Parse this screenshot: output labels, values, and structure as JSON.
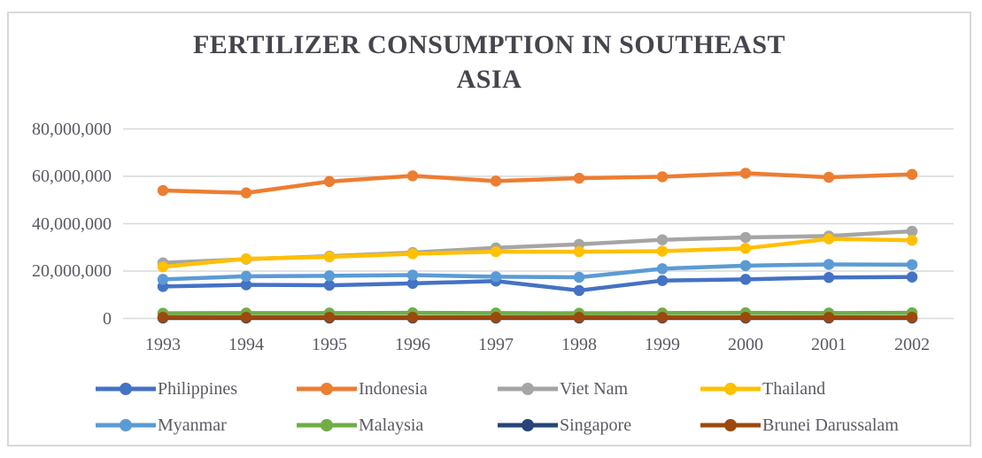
{
  "title": "FERTILIZER CONSUMPTION IN SOUTHEAST ASIA",
  "title_lines": [
    "FERTILIZER CONSUMPTION IN SOUTHEAST",
    "ASIA"
  ],
  "chart_data": {
    "type": "line",
    "title": "FERTILIZER CONSUMPTION IN SOUTHEAST ASIA",
    "xlabel": "",
    "ylabel": "",
    "x": [
      1993,
      1994,
      1995,
      1996,
      1997,
      1998,
      1999,
      2000,
      2001,
      2002
    ],
    "ylim": [
      0,
      80000000
    ],
    "grid": true,
    "legend_position": "bottom",
    "y_ticks": [
      {
        "value": 0,
        "label": "0"
      },
      {
        "value": 20000000,
        "label": "20,000,000"
      },
      {
        "value": 40000000,
        "label": "40,000,000"
      },
      {
        "value": 60000000,
        "label": "60,000,000"
      },
      {
        "value": 80000000,
        "label": "80,000,000"
      }
    ],
    "series": [
      {
        "name": "Philippines",
        "color": "#4472C4",
        "values": [
          13500000,
          14200000,
          14000000,
          14800000,
          15800000,
          11800000,
          16000000,
          16500000,
          17300000,
          17500000
        ]
      },
      {
        "name": "Indonesia",
        "color": "#ED7D31",
        "values": [
          54000000,
          53000000,
          57800000,
          60200000,
          58000000,
          59200000,
          59800000,
          61300000,
          59600000,
          60800000
        ]
      },
      {
        "name": "Viet Nam",
        "color": "#A5A5A5",
        "values": [
          23500000,
          25000000,
          26300000,
          27800000,
          29800000,
          31300000,
          33200000,
          34200000,
          34800000,
          36800000
        ]
      },
      {
        "name": "Thailand",
        "color": "#FFC000",
        "values": [
          21800000,
          25200000,
          26000000,
          27300000,
          28200000,
          28200000,
          28400000,
          29600000,
          33600000,
          33000000
        ]
      },
      {
        "name": "Myanmar",
        "color": "#5B9BD5",
        "values": [
          16500000,
          17800000,
          18000000,
          18300000,
          17600000,
          17400000,
          21000000,
          22300000,
          22800000,
          22700000
        ]
      },
      {
        "name": "Malaysia",
        "color": "#70AD47",
        "values": [
          2200000,
          2300000,
          2300000,
          2400000,
          2300000,
          2200000,
          2300000,
          2400000,
          2300000,
          2400000
        ]
      },
      {
        "name": "Singapore",
        "color": "#264478",
        "values": [
          200000,
          200000,
          200000,
          200000,
          200000,
          200000,
          200000,
          200000,
          200000,
          200000
        ]
      },
      {
        "name": "Brunei Darussalam",
        "color": "#9E480E",
        "values": [
          500000,
          500000,
          500000,
          500000,
          500000,
          500000,
          500000,
          500000,
          500000,
          500000
        ]
      }
    ],
    "colors": {
      "gridline": "#d9d9d9",
      "axis_text": "#5a5a64",
      "title_text": "#45454e",
      "frame_border": "#d9d9d9"
    }
  }
}
